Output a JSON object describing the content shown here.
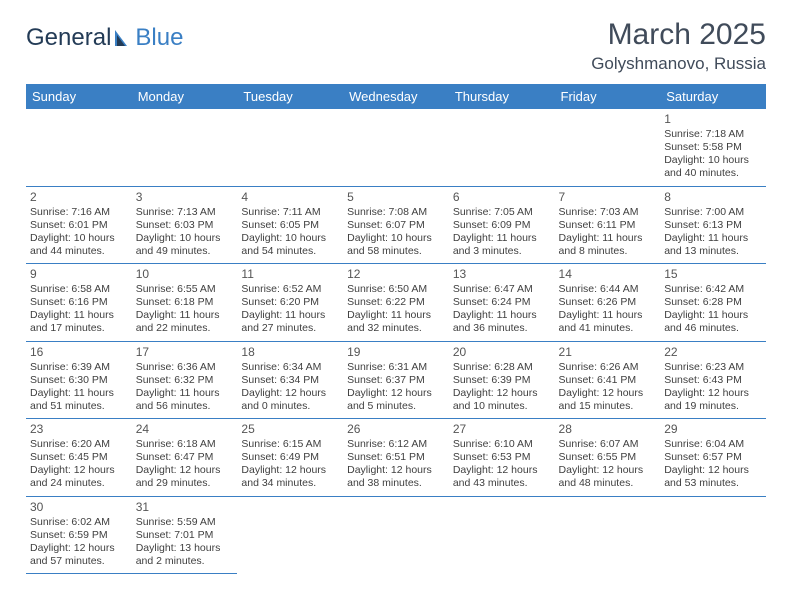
{
  "brand": {
    "part1": "Genera",
    "part2": "l",
    "part3": "Blue"
  },
  "title": "March 2025",
  "location": "Golyshmanovo, Russia",
  "colors": {
    "header_bg": "#3a7fc4",
    "header_fg": "#ffffff",
    "rule": "#3a7fc4",
    "text": "#3f3f3f",
    "title": "#404b5a",
    "leading_bg": "#f0f0f0"
  },
  "fonts": {
    "title_size": 30,
    "location_size": 17,
    "head_size": 13,
    "cell_size": 10.5
  },
  "weekdays": [
    "Sunday",
    "Monday",
    "Tuesday",
    "Wednesday",
    "Thursday",
    "Friday",
    "Saturday"
  ],
  "grid": [
    [
      {
        "blank": true
      },
      {
        "blank": true
      },
      {
        "blank": true
      },
      {
        "blank": true
      },
      {
        "blank": true
      },
      {
        "blank": true
      },
      {
        "day": "1",
        "sunrise": "Sunrise: 7:18 AM",
        "sunset": "Sunset: 5:58 PM",
        "day1": "Daylight: 10 hours",
        "day2": "and 40 minutes."
      }
    ],
    [
      {
        "day": "2",
        "sunrise": "Sunrise: 7:16 AM",
        "sunset": "Sunset: 6:01 PM",
        "day1": "Daylight: 10 hours",
        "day2": "and 44 minutes."
      },
      {
        "day": "3",
        "sunrise": "Sunrise: 7:13 AM",
        "sunset": "Sunset: 6:03 PM",
        "day1": "Daylight: 10 hours",
        "day2": "and 49 minutes."
      },
      {
        "day": "4",
        "sunrise": "Sunrise: 7:11 AM",
        "sunset": "Sunset: 6:05 PM",
        "day1": "Daylight: 10 hours",
        "day2": "and 54 minutes."
      },
      {
        "day": "5",
        "sunrise": "Sunrise: 7:08 AM",
        "sunset": "Sunset: 6:07 PM",
        "day1": "Daylight: 10 hours",
        "day2": "and 58 minutes."
      },
      {
        "day": "6",
        "sunrise": "Sunrise: 7:05 AM",
        "sunset": "Sunset: 6:09 PM",
        "day1": "Daylight: 11 hours",
        "day2": "and 3 minutes."
      },
      {
        "day": "7",
        "sunrise": "Sunrise: 7:03 AM",
        "sunset": "Sunset: 6:11 PM",
        "day1": "Daylight: 11 hours",
        "day2": "and 8 minutes."
      },
      {
        "day": "8",
        "sunrise": "Sunrise: 7:00 AM",
        "sunset": "Sunset: 6:13 PM",
        "day1": "Daylight: 11 hours",
        "day2": "and 13 minutes."
      }
    ],
    [
      {
        "day": "9",
        "sunrise": "Sunrise: 6:58 AM",
        "sunset": "Sunset: 6:16 PM",
        "day1": "Daylight: 11 hours",
        "day2": "and 17 minutes."
      },
      {
        "day": "10",
        "sunrise": "Sunrise: 6:55 AM",
        "sunset": "Sunset: 6:18 PM",
        "day1": "Daylight: 11 hours",
        "day2": "and 22 minutes."
      },
      {
        "day": "11",
        "sunrise": "Sunrise: 6:52 AM",
        "sunset": "Sunset: 6:20 PM",
        "day1": "Daylight: 11 hours",
        "day2": "and 27 minutes."
      },
      {
        "day": "12",
        "sunrise": "Sunrise: 6:50 AM",
        "sunset": "Sunset: 6:22 PM",
        "day1": "Daylight: 11 hours",
        "day2": "and 32 minutes."
      },
      {
        "day": "13",
        "sunrise": "Sunrise: 6:47 AM",
        "sunset": "Sunset: 6:24 PM",
        "day1": "Daylight: 11 hours",
        "day2": "and 36 minutes."
      },
      {
        "day": "14",
        "sunrise": "Sunrise: 6:44 AM",
        "sunset": "Sunset: 6:26 PM",
        "day1": "Daylight: 11 hours",
        "day2": "and 41 minutes."
      },
      {
        "day": "15",
        "sunrise": "Sunrise: 6:42 AM",
        "sunset": "Sunset: 6:28 PM",
        "day1": "Daylight: 11 hours",
        "day2": "and 46 minutes."
      }
    ],
    [
      {
        "day": "16",
        "sunrise": "Sunrise: 6:39 AM",
        "sunset": "Sunset: 6:30 PM",
        "day1": "Daylight: 11 hours",
        "day2": "and 51 minutes."
      },
      {
        "day": "17",
        "sunrise": "Sunrise: 6:36 AM",
        "sunset": "Sunset: 6:32 PM",
        "day1": "Daylight: 11 hours",
        "day2": "and 56 minutes."
      },
      {
        "day": "18",
        "sunrise": "Sunrise: 6:34 AM",
        "sunset": "Sunset: 6:34 PM",
        "day1": "Daylight: 12 hours",
        "day2": "and 0 minutes."
      },
      {
        "day": "19",
        "sunrise": "Sunrise: 6:31 AM",
        "sunset": "Sunset: 6:37 PM",
        "day1": "Daylight: 12 hours",
        "day2": "and 5 minutes."
      },
      {
        "day": "20",
        "sunrise": "Sunrise: 6:28 AM",
        "sunset": "Sunset: 6:39 PM",
        "day1": "Daylight: 12 hours",
        "day2": "and 10 minutes."
      },
      {
        "day": "21",
        "sunrise": "Sunrise: 6:26 AM",
        "sunset": "Sunset: 6:41 PM",
        "day1": "Daylight: 12 hours",
        "day2": "and 15 minutes."
      },
      {
        "day": "22",
        "sunrise": "Sunrise: 6:23 AM",
        "sunset": "Sunset: 6:43 PM",
        "day1": "Daylight: 12 hours",
        "day2": "and 19 minutes."
      }
    ],
    [
      {
        "day": "23",
        "sunrise": "Sunrise: 6:20 AM",
        "sunset": "Sunset: 6:45 PM",
        "day1": "Daylight: 12 hours",
        "day2": "and 24 minutes."
      },
      {
        "day": "24",
        "sunrise": "Sunrise: 6:18 AM",
        "sunset": "Sunset: 6:47 PM",
        "day1": "Daylight: 12 hours",
        "day2": "and 29 minutes."
      },
      {
        "day": "25",
        "sunrise": "Sunrise: 6:15 AM",
        "sunset": "Sunset: 6:49 PM",
        "day1": "Daylight: 12 hours",
        "day2": "and 34 minutes."
      },
      {
        "day": "26",
        "sunrise": "Sunrise: 6:12 AM",
        "sunset": "Sunset: 6:51 PM",
        "day1": "Daylight: 12 hours",
        "day2": "and 38 minutes."
      },
      {
        "day": "27",
        "sunrise": "Sunrise: 6:10 AM",
        "sunset": "Sunset: 6:53 PM",
        "day1": "Daylight: 12 hours",
        "day2": "and 43 minutes."
      },
      {
        "day": "28",
        "sunrise": "Sunrise: 6:07 AM",
        "sunset": "Sunset: 6:55 PM",
        "day1": "Daylight: 12 hours",
        "day2": "and 48 minutes."
      },
      {
        "day": "29",
        "sunrise": "Sunrise: 6:04 AM",
        "sunset": "Sunset: 6:57 PM",
        "day1": "Daylight: 12 hours",
        "day2": "and 53 minutes."
      }
    ],
    [
      {
        "day": "30",
        "sunrise": "Sunrise: 6:02 AM",
        "sunset": "Sunset: 6:59 PM",
        "day1": "Daylight: 12 hours",
        "day2": "and 57 minutes."
      },
      {
        "day": "31",
        "sunrise": "Sunrise: 5:59 AM",
        "sunset": "Sunset: 7:01 PM",
        "day1": "Daylight: 13 hours",
        "day2": "and 2 minutes."
      },
      {
        "blank": true
      },
      {
        "blank": true
      },
      {
        "blank": true
      },
      {
        "blank": true
      },
      {
        "blank": true
      }
    ]
  ]
}
